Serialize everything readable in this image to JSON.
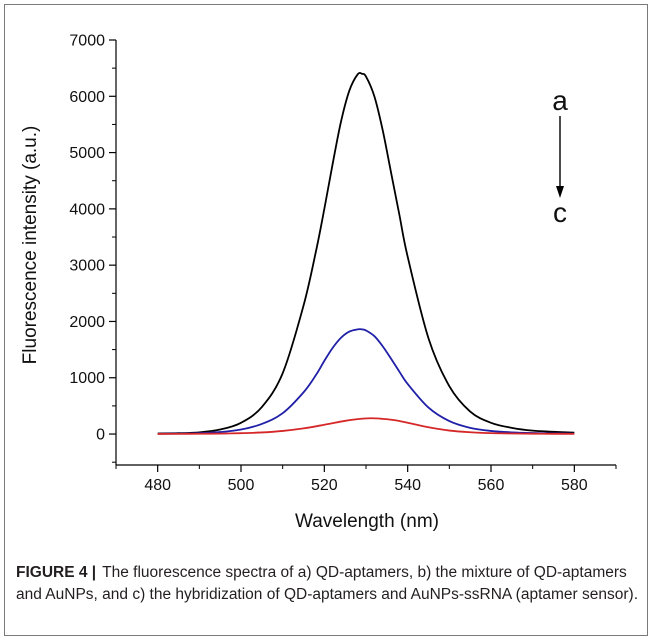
{
  "chart_data": {
    "type": "line",
    "xlabel": "Wavelength (nm)",
    "ylabel": "Fluorescence intensity (a.u.)",
    "xlim": [
      470,
      590
    ],
    "ylim": [
      -550,
      7000
    ],
    "x_ticks": [
      480,
      500,
      520,
      540,
      560,
      580
    ],
    "y_ticks": [
      0,
      1000,
      2000,
      3000,
      4000,
      5000,
      6000,
      7000
    ],
    "grid": false,
    "series": [
      {
        "color": "#000000",
        "x": [
          480,
          485,
          490,
          495,
          500,
          505,
          510,
          515,
          518,
          520,
          522,
          524,
          526,
          528,
          529,
          530,
          532,
          534,
          536,
          538,
          540,
          545,
          550,
          555,
          560,
          565,
          570,
          575,
          580
        ],
        "values": [
          10,
          15,
          30,
          80,
          200,
          480,
          1080,
          2280,
          3250,
          4000,
          4800,
          5550,
          6100,
          6390,
          6400,
          6350,
          6000,
          5400,
          4650,
          3900,
          3150,
          1700,
          850,
          400,
          200,
          110,
          60,
          40,
          25
        ]
      },
      {
        "color": "#1f1fa8",
        "x": [
          480,
          485,
          490,
          495,
          500,
          505,
          510,
          515,
          518,
          520,
          522,
          524,
          526,
          528,
          529,
          530,
          532,
          534,
          536,
          538,
          540,
          545,
          550,
          555,
          560,
          565,
          570,
          575,
          580
        ],
        "values": [
          5,
          8,
          15,
          35,
          80,
          180,
          370,
          740,
          1050,
          1300,
          1530,
          1710,
          1820,
          1860,
          1860,
          1840,
          1740,
          1560,
          1340,
          1110,
          890,
          470,
          230,
          110,
          55,
          30,
          18,
          12,
          8
        ]
      },
      {
        "color": "#d62728",
        "x": [
          480,
          485,
          490,
          495,
          500,
          505,
          510,
          515,
          520,
          525,
          528,
          531,
          534,
          537,
          540,
          545,
          550,
          555,
          560,
          565,
          570,
          575,
          580
        ],
        "values": [
          2,
          3,
          5,
          8,
          15,
          28,
          55,
          100,
          165,
          235,
          265,
          280,
          270,
          245,
          200,
          120,
          62,
          32,
          16,
          9,
          6,
          4,
          3
        ]
      }
    ],
    "annotations": {
      "top_label": "a",
      "bottom_label": "c"
    }
  },
  "caption": {
    "label": "FIGURE 4",
    "separator": "|",
    "text": " The fluorescence spectra of a) QD-aptamers, b) the mixture of QD-aptamers and AuNPs, and c) the hybridization of QD-aptamers and AuNPs-ssRNA (aptamer sensor)."
  }
}
